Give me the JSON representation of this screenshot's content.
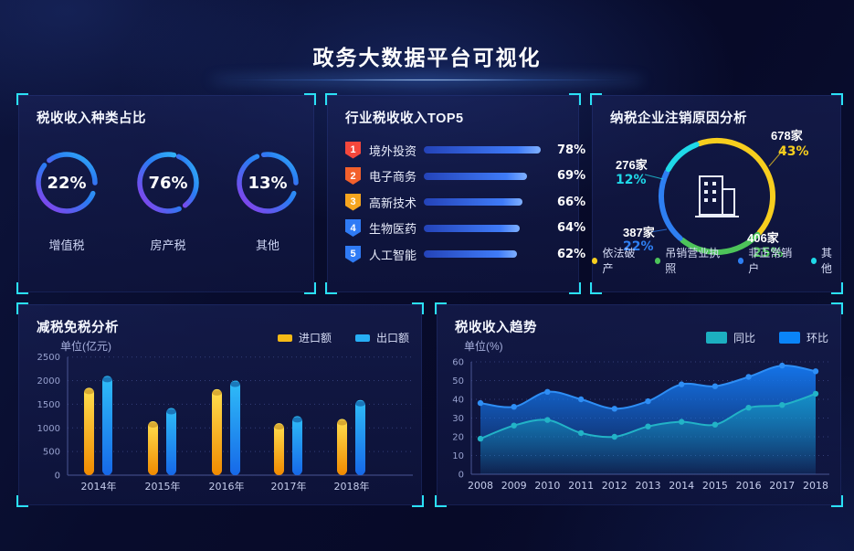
{
  "page": {
    "title": "政务大数据平台可视化"
  },
  "colors": {
    "bracket": "#2BE1F5",
    "page_bg": "#080C2C",
    "panel_bg": "#10184A"
  },
  "chart_data": [
    {
      "id": "tax_type_rings",
      "type": "pie",
      "variant": "percent-rings",
      "title": "税收收入种类占比",
      "ring_gradient": [
        "#9637EA",
        "#2B7BF3",
        "#31B8F7"
      ],
      "items": [
        {
          "label": "增值税",
          "value": 22,
          "unit": "%"
        },
        {
          "label": "房产税",
          "value": 76,
          "unit": "%"
        },
        {
          "label": "其他",
          "value": 13,
          "unit": "%"
        }
      ]
    },
    {
      "id": "industry_top5",
      "type": "bar",
      "variant": "horizontal-ranked",
      "title": "行业税收收入TOP5",
      "unit": "%",
      "categories": [
        "境外投资",
        "电子商务",
        "高新技术",
        "生物医药",
        "人工智能"
      ],
      "values": [
        78,
        69,
        66,
        64,
        62
      ],
      "badge_colors": [
        "#F5473C",
        "#F3602C",
        "#F6A51F",
        "#2F7BF5",
        "#2F7BF5"
      ],
      "bar_gradient": [
        "#2443B8",
        "#3F7BF8",
        "#7FB0FF"
      ]
    },
    {
      "id": "cancellation_reasons",
      "type": "pie",
      "variant": "donut",
      "title": "纳税企业注销原因分析",
      "slices": [
        {
          "label": "依法破产",
          "count": "678家",
          "percent": 43,
          "color": "#F7CE1E"
        },
        {
          "label": "吊销营业执照",
          "count": "406家",
          "percent": 25,
          "color": "#4DC45A"
        },
        {
          "label": "非正常销户",
          "count": "387家",
          "percent": 22,
          "color": "#2E7FF2"
        },
        {
          "label": "其他",
          "count": "276家",
          "percent": 12,
          "color": "#1FD9E8"
        }
      ]
    },
    {
      "id": "tax_reduction",
      "type": "bar",
      "title": "减税免税分析",
      "ylabel": "单位(亿元)",
      "ylim": [
        0,
        2500
      ],
      "yticks": [
        0,
        500,
        1000,
        1500,
        2000,
        2500
      ],
      "categories": [
        "2014年",
        "2015年",
        "2016年",
        "2017年",
        "2018年"
      ],
      "series": [
        {
          "name": "进口额",
          "swatch": "#F5B916",
          "gradient": [
            "#FFDF4F",
            "#F08A00"
          ],
          "values": [
            1850,
            1140,
            1820,
            1100,
            1190
          ]
        },
        {
          "name": "出口额",
          "swatch": "#27AEF5",
          "gradient": [
            "#2FBDF8",
            "#1668E8"
          ],
          "values": [
            2100,
            1420,
            2000,
            1250,
            1590
          ]
        }
      ]
    },
    {
      "id": "tax_trend",
      "type": "area",
      "title": "税收收入趋势",
      "ylabel": "单位(%)",
      "ylim": [
        0,
        60
      ],
      "yticks": [
        0,
        10,
        20,
        30,
        40,
        50,
        60
      ],
      "x": [
        2008,
        2009,
        2010,
        2011,
        2012,
        2013,
        2014,
        2015,
        2016,
        2017,
        2018
      ],
      "series": [
        {
          "name": "同比",
          "swatch": "#1CAFC0",
          "color": "#22B3C7",
          "fill": "#17B6CC",
          "values": [
            19,
            26,
            29,
            22,
            20,
            25.5,
            28,
            26.5,
            35.5,
            37,
            43
          ]
        },
        {
          "name": "环比",
          "swatch": "#0A84F8",
          "color": "#2E8EF5",
          "fill": "#1478F0",
          "values": [
            38,
            36,
            44,
            40,
            35,
            39,
            48,
            47,
            52,
            58,
            55
          ]
        }
      ]
    }
  ]
}
